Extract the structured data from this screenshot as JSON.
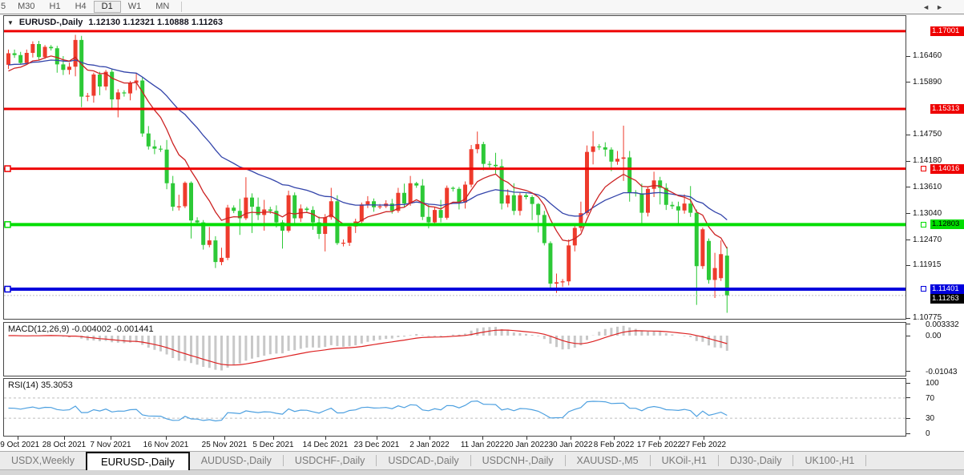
{
  "toolbar": {
    "items": [
      "5",
      "M30",
      "H1",
      "H4",
      "D1",
      "W1",
      "MN"
    ],
    "active": "D1"
  },
  "main_chart": {
    "title_symbol": "EURUSD-,Daily",
    "title_ohlc": "1.12130 1.12321 1.10888 1.11263",
    "collapse_icon": "down-triangle",
    "price_ticks": [
      "1.16460",
      "1.15890",
      "1.14750",
      "1.14180",
      "1.13610",
      "1.13040",
      "1.12470",
      "1.11915",
      "1.10775"
    ],
    "hlines": [
      {
        "label": "1.17001",
        "value": 1.17001,
        "color": "#ee0000",
        "label_text_color": "#ffffff",
        "thickness": 3,
        "selected": false
      },
      {
        "label": "1.15313",
        "value": 1.15313,
        "color": "#ee0000",
        "label_text_color": "#ffffff",
        "thickness": 3,
        "selected": false
      },
      {
        "label": "1.14016",
        "value": 1.14016,
        "color": "#ee0000",
        "label_text_color": "#ffffff",
        "thickness": 3,
        "selected": true
      },
      {
        "label": "1.12803",
        "value": 1.12803,
        "color": "#00dd00",
        "label_text_color": "#000000",
        "thickness": 4,
        "selected": true
      },
      {
        "label": "1.11401",
        "value": 1.11401,
        "color": "#0000dd",
        "label_text_color": "#ffffff",
        "thickness": 4,
        "selected": true
      }
    ],
    "current_price": {
      "label": "1.11263",
      "value": 1.11263,
      "bg": "#000000",
      "text_color": "#ffffff"
    },
    "colors": {
      "up": "#ee3b2c",
      "down": "#2dc937",
      "ma_fast": "#cc2222",
      "ma_slow": "#3344aa"
    }
  },
  "macd_panel": {
    "label": "MACD(12,26,9) -0.004002 -0.001441",
    "params": [
      12,
      26,
      9
    ],
    "values": [
      "-0.004002",
      "-0.001441"
    ],
    "axis_labels": [
      "0.003332",
      "0.00",
      "-0.01043"
    ],
    "axis_values": [
      0.003332,
      0,
      -0.01043
    ],
    "colors": {
      "histogram": "#c8c8c8",
      "signal": "#dd2222"
    }
  },
  "rsi_panel": {
    "label": "RSI(14) 35.3053",
    "period": 14,
    "value": "35.3053",
    "axis_labels": [
      "100",
      "70",
      "30",
      "0"
    ],
    "axis_values": [
      100,
      70,
      30,
      0
    ],
    "level_lines": [
      70,
      30
    ],
    "color": "#4da0e0"
  },
  "date_axis": [
    "19 Oct 2021",
    "28 Oct 2021",
    "7 Nov 2021",
    "16 Nov 2021",
    "25 Nov 2021",
    "5 Dec 2021",
    "14 Dec 2021",
    "23 Dec 2021",
    "2 Jan 2022",
    "11 Jan 2022",
    "20 Jan 2022",
    "30 Jan 2022",
    "8 Feb 2022",
    "17 Feb 2022",
    "27 Feb 2022"
  ],
  "tab_bar": {
    "tabs": [
      "USDX,Weekly",
      "EURUSD-,Daily",
      "AUDUSD-,Daily",
      "USDCHF-,Daily",
      "USDCAD-,Daily",
      "USDCNH-,Daily",
      "XAUUSD-,M5",
      "UKOil-,H1",
      "DJ30-,Daily",
      "UK100-,H1"
    ],
    "active_index": 1,
    "scroll_left_icon": "left-arrow",
    "scroll_right_icon": "right-arrow"
  },
  "chart_data": {
    "type": "candlestick",
    "symbol": "EURUSD-",
    "timeframe": "Daily",
    "current_bar": {
      "open": "1.12130",
      "high": "1.12321",
      "low": "1.10888",
      "close": "1.11263"
    },
    "indicators": [
      "MACD(12,26,9)",
      "RSI(14)"
    ],
    "y_axis_range": [
      1.10775,
      1.17001
    ],
    "candles": [
      [
        1.1627,
        1.166,
        1.1618,
        1.1652
      ],
      [
        1.1652,
        1.166,
        1.1642,
        1.1648
      ],
      [
        1.1648,
        1.1655,
        1.1628,
        1.1631
      ],
      [
        1.1631,
        1.166,
        1.1629,
        1.1653
      ],
      [
        1.1653,
        1.1678,
        1.1643,
        1.1672
      ],
      [
        1.1672,
        1.1679,
        1.1637,
        1.1644
      ],
      [
        1.1644,
        1.167,
        1.164,
        1.1666
      ],
      [
        1.1666,
        1.167,
        1.1658,
        1.1663
      ],
      [
        1.1663,
        1.1668,
        1.161,
        1.1628
      ],
      [
        1.1628,
        1.1646,
        1.1605,
        1.1616
      ],
      [
        1.1616,
        1.1632,
        1.1606,
        1.1623
      ],
      [
        1.1623,
        1.1692,
        1.1602,
        1.1681
      ],
      [
        1.1681,
        1.169,
        1.1535,
        1.1558
      ],
      [
        1.1558,
        1.1566,
        1.1548,
        1.156
      ],
      [
        1.156,
        1.161,
        1.1545,
        1.1606
      ],
      [
        1.1606,
        1.1612,
        1.1561,
        1.158
      ],
      [
        1.158,
        1.1616,
        1.1572,
        1.1612
      ],
      [
        1.1612,
        1.1618,
        1.1529,
        1.1552
      ],
      [
        1.1552,
        1.1574,
        1.1513,
        1.1567
      ],
      [
        1.1567,
        1.1572,
        1.1558,
        1.1565
      ],
      [
        1.1565,
        1.1592,
        1.155,
        1.1588
      ],
      [
        1.1588,
        1.1609,
        1.1572,
        1.1593
      ],
      [
        1.1593,
        1.1599,
        1.1471,
        1.1478
      ],
      [
        1.1478,
        1.1494,
        1.1443,
        1.145
      ],
      [
        1.145,
        1.1464,
        1.1433,
        1.1445
      ],
      [
        1.1445,
        1.1452,
        1.1438,
        1.1443
      ],
      [
        1.1443,
        1.1464,
        1.1357,
        1.137
      ],
      [
        1.137,
        1.1386,
        1.131,
        1.1319
      ],
      [
        1.1319,
        1.1345,
        1.1311,
        1.132
      ],
      [
        1.132,
        1.1374,
        1.1316,
        1.1371
      ],
      [
        1.1371,
        1.1374,
        1.125,
        1.1289
      ],
      [
        1.1289,
        1.1296,
        1.128,
        1.1285
      ],
      [
        1.1285,
        1.129,
        1.1226,
        1.1236
      ],
      [
        1.1236,
        1.1275,
        1.1231,
        1.1246
      ],
      [
        1.1246,
        1.1255,
        1.1186,
        1.1199
      ],
      [
        1.1199,
        1.123,
        1.1192,
        1.1208
      ],
      [
        1.1208,
        1.1323,
        1.1203,
        1.1317
      ],
      [
        1.1317,
        1.1322,
        1.1305,
        1.131
      ],
      [
        1.131,
        1.1336,
        1.1258,
        1.1294
      ],
      [
        1.1294,
        1.1383,
        1.129,
        1.1339
      ],
      [
        1.1339,
        1.1348,
        1.1262,
        1.1319
      ],
      [
        1.1319,
        1.1339,
        1.129,
        1.1301
      ],
      [
        1.1301,
        1.1334,
        1.1267,
        1.1313
      ],
      [
        1.1313,
        1.1319,
        1.1304,
        1.131
      ],
      [
        1.131,
        1.1322,
        1.1274,
        1.1285
      ],
      [
        1.1285,
        1.129,
        1.1228,
        1.1267
      ],
      [
        1.1267,
        1.1354,
        1.1263,
        1.1344
      ],
      [
        1.1344,
        1.135,
        1.128,
        1.1294
      ],
      [
        1.1294,
        1.1324,
        1.1286,
        1.1315
      ],
      [
        1.1315,
        1.1319,
        1.1306,
        1.1312
      ],
      [
        1.1312,
        1.132,
        1.1269,
        1.1285
      ],
      [
        1.1285,
        1.1298,
        1.1249,
        1.126
      ],
      [
        1.126,
        1.1303,
        1.1222,
        1.1296
      ],
      [
        1.1296,
        1.136,
        1.1291,
        1.1331
      ],
      [
        1.1331,
        1.1344,
        1.1236,
        1.124
      ],
      [
        1.124,
        1.1248,
        1.1233,
        1.1241
      ],
      [
        1.1241,
        1.1282,
        1.1234,
        1.1276
      ],
      [
        1.1276,
        1.1293,
        1.1262,
        1.1287
      ],
      [
        1.1287,
        1.1328,
        1.1283,
        1.1324
      ],
      [
        1.1324,
        1.1342,
        1.1316,
        1.1331
      ],
      [
        1.1331,
        1.1337,
        1.1308,
        1.1318
      ],
      [
        1.1318,
        1.1325,
        1.1314,
        1.132
      ],
      [
        1.132,
        1.1333,
        1.1316,
        1.1326
      ],
      [
        1.1326,
        1.1336,
        1.1304,
        1.131
      ],
      [
        1.131,
        1.136,
        1.1306,
        1.1349
      ],
      [
        1.1349,
        1.1369,
        1.1318,
        1.1326
      ],
      [
        1.1326,
        1.1386,
        1.1321,
        1.137
      ],
      [
        1.137,
        1.1373,
        1.136,
        1.1365
      ],
      [
        1.1365,
        1.1379,
        1.129,
        1.1297
      ],
      [
        1.1297,
        1.1323,
        1.1272,
        1.1285
      ],
      [
        1.1285,
        1.1319,
        1.1278,
        1.1312
      ],
      [
        1.1312,
        1.1334,
        1.1285,
        1.1295
      ],
      [
        1.1295,
        1.1365,
        1.1291,
        1.136
      ],
      [
        1.136,
        1.1363,
        1.1352,
        1.1358
      ],
      [
        1.1358,
        1.1362,
        1.1313,
        1.1328
      ],
      [
        1.1328,
        1.1374,
        1.1315,
        1.1367
      ],
      [
        1.1367,
        1.1453,
        1.1361,
        1.1444
      ],
      [
        1.1444,
        1.1482,
        1.1435,
        1.1455
      ],
      [
        1.1455,
        1.146,
        1.1398,
        1.1412
      ],
      [
        1.1412,
        1.1418,
        1.1404,
        1.141
      ],
      [
        1.141,
        1.1436,
        1.1391,
        1.1407
      ],
      [
        1.1407,
        1.1422,
        1.1313,
        1.1326
      ],
      [
        1.1326,
        1.1357,
        1.1318,
        1.1344
      ],
      [
        1.1344,
        1.137,
        1.1301,
        1.131
      ],
      [
        1.131,
        1.1349,
        1.13,
        1.1344
      ],
      [
        1.1344,
        1.1348,
        1.1335,
        1.134
      ],
      [
        1.134,
        1.1344,
        1.129,
        1.1325
      ],
      [
        1.1325,
        1.1327,
        1.1263,
        1.1301
      ],
      [
        1.1301,
        1.131,
        1.1235,
        1.124
      ],
      [
        1.124,
        1.1244,
        1.114,
        1.1152
      ],
      [
        1.1152,
        1.1174,
        1.1132,
        1.1155
      ],
      [
        1.1155,
        1.1162,
        1.1145,
        1.1157
      ],
      [
        1.1157,
        1.1248,
        1.1148,
        1.1235
      ],
      [
        1.1235,
        1.1279,
        1.1222,
        1.1273
      ],
      [
        1.1273,
        1.133,
        1.1266,
        1.1305
      ],
      [
        1.1305,
        1.1452,
        1.13,
        1.1438
      ],
      [
        1.1438,
        1.1483,
        1.1411,
        1.145
      ],
      [
        1.145,
        1.1455,
        1.1442,
        1.1448
      ],
      [
        1.1448,
        1.1459,
        1.1428,
        1.1443
      ],
      [
        1.1443,
        1.1448,
        1.1396,
        1.1417
      ],
      [
        1.1417,
        1.144,
        1.141,
        1.1423
      ],
      [
        1.1423,
        1.1495,
        1.1375,
        1.1426
      ],
      [
        1.1426,
        1.144,
        1.133,
        1.135
      ],
      [
        1.135,
        1.1355,
        1.1341,
        1.1348
      ],
      [
        1.1348,
        1.1369,
        1.128,
        1.1306
      ],
      [
        1.1306,
        1.1362,
        1.1298,
        1.1358
      ],
      [
        1.1358,
        1.1395,
        1.134,
        1.1376
      ],
      [
        1.1376,
        1.1384,
        1.1324,
        1.136
      ],
      [
        1.136,
        1.137,
        1.1312,
        1.1323
      ],
      [
        1.1323,
        1.133,
        1.1314,
        1.132
      ],
      [
        1.132,
        1.133,
        1.1279,
        1.1311
      ],
      [
        1.1311,
        1.1346,
        1.1304,
        1.1326
      ],
      [
        1.1326,
        1.1364,
        1.1297,
        1.1306
      ],
      [
        1.1306,
        1.1313,
        1.1106,
        1.119
      ],
      [
        1.119,
        1.1274,
        1.1184,
        1.127
      ],
      [
        1.1245,
        1.125,
        1.1152,
        1.116
      ],
      [
        1.116,
        1.1219,
        1.1121,
        1.1186
      ],
      [
        1.1164,
        1.1246,
        1.1158,
        1.1216
      ],
      [
        1.1213,
        1.12321,
        1.10888,
        1.11263
      ]
    ]
  }
}
